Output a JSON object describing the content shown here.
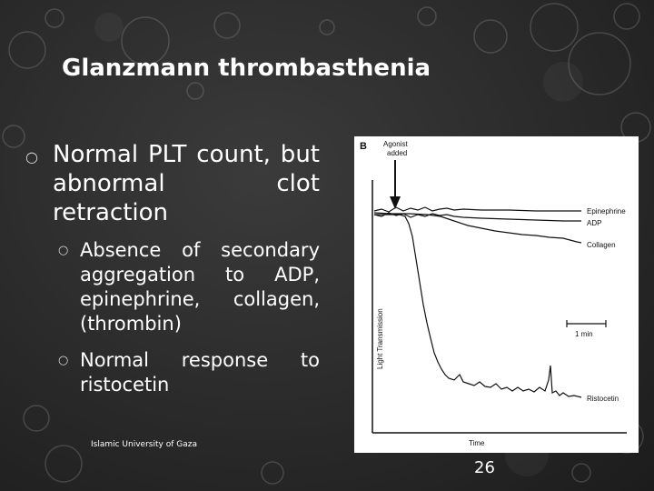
{
  "slide": {
    "title": "Glanzmann thrombasthenia",
    "main_bullet": "Normal PLT count, but abnormal clot retraction",
    "sub_bullets": [
      "Absence of secondary aggregation to ADP, epinephrine, collagen, (thrombin)",
      "Normal response to ristocetin"
    ],
    "footer": "Islamic University of Gaza",
    "page_number": "26"
  },
  "figure": {
    "panel_label": "B",
    "agonist_label_line1": "Agonist",
    "agonist_label_line2": "added",
    "curve_labels": [
      "Epinephrine",
      "ADP",
      "Collagen",
      "Ristocetin"
    ],
    "scale_label": "1 min",
    "y_axis_label": "Light Transmission",
    "x_axis_label": "Time"
  },
  "colors": {
    "background": "#2a2a2a",
    "text": "#ffffff",
    "bullet": "#d8d8d8",
    "figure_background": "#ffffff",
    "figure_ink": "#111111"
  }
}
